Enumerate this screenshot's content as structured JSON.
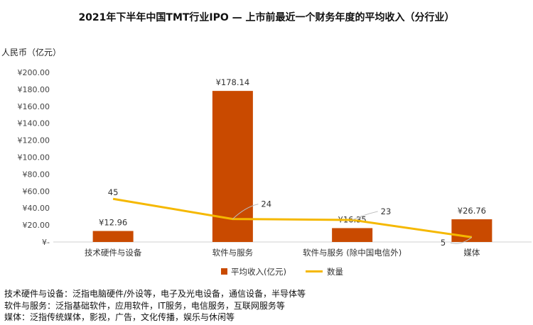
{
  "title": "2021年下半年中国TMT行业IPO — 上市前最近一个财务年度的平均收入（分行业）",
  "chart_data": {
    "type": "bar",
    "title": "2021年下半年中国TMT行业IPO — 上市前最近一个财务年度的平均收入（分行业）",
    "ylabel": "人民币（亿元）",
    "ylim": [
      0,
      200
    ],
    "yticks": [
      "¥-",
      "¥20.00",
      "¥40.00",
      "¥60.00",
      "¥80.00",
      "¥100.00",
      "¥120.00",
      "¥140.00",
      "¥160.00",
      "¥180.00",
      "¥200.00"
    ],
    "categories": [
      "技术硬件与设备",
      "软件与服务",
      "软件与服务 (除中国电信外)",
      "媒体"
    ],
    "series": [
      {
        "name": "平均收入(亿元)",
        "kind": "bar",
        "color": "#C94A00",
        "values": [
          12.96,
          178.14,
          16.35,
          26.76
        ],
        "labels": [
          "¥12.96",
          "¥178.14",
          "¥16.35",
          "¥26.76"
        ]
      },
      {
        "name": "数量",
        "kind": "line",
        "color": "#F5B800",
        "values": [
          45,
          24,
          23,
          5
        ],
        "labels": [
          "45",
          "24",
          "23",
          "5"
        ]
      }
    ],
    "grid": false,
    "legend_position": "bottom"
  },
  "notes": [
    "技术硬件与设备：泛指电脑硬件/外设等，电子及光电设备，通信设备，半导体等",
    "软件与服务：泛指基础软件，应用软件，IT服务，电信服务，互联网服务等",
    "媒体：泛指传统媒体，影视，广告，文化传播，娱乐与休闲等"
  ]
}
